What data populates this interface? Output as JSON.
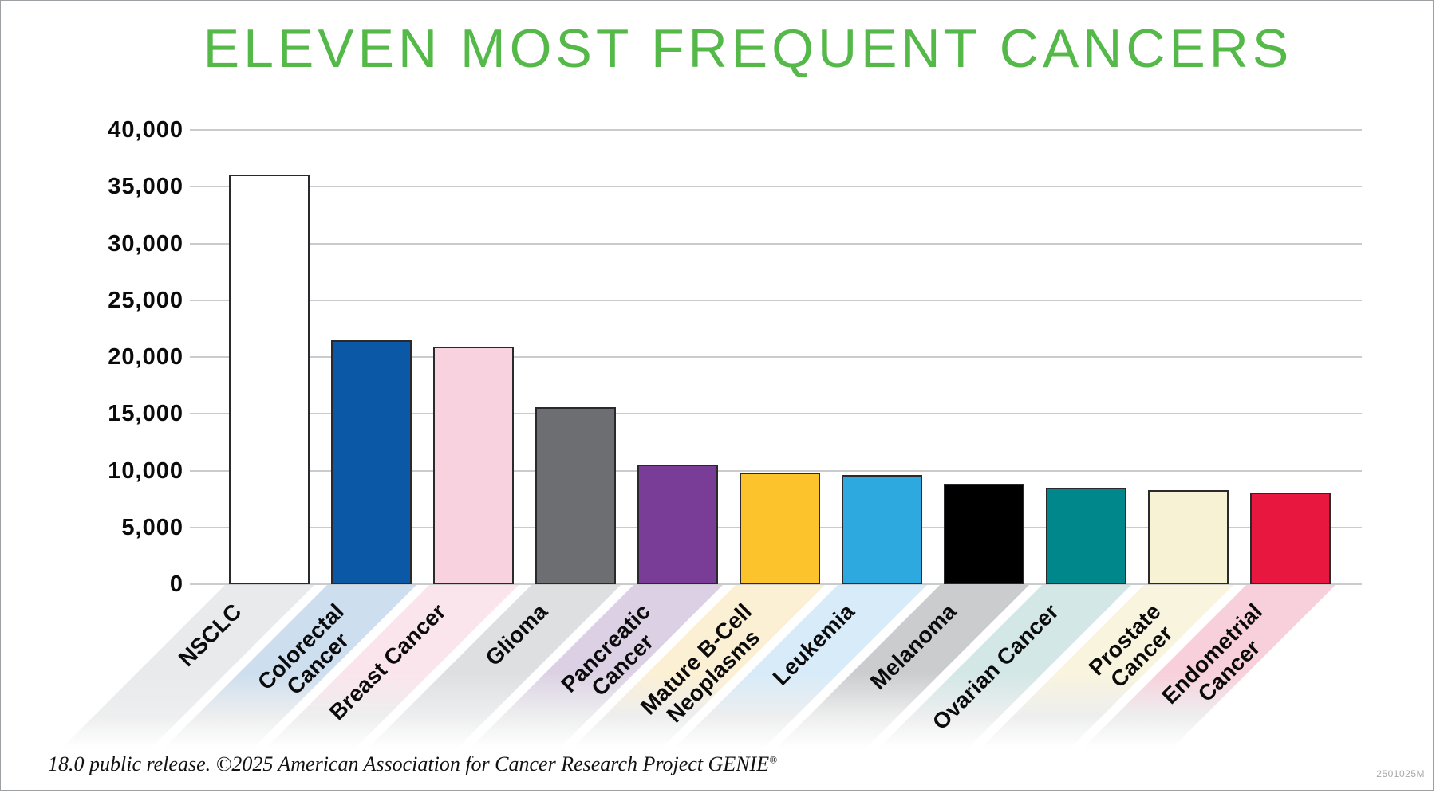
{
  "title": {
    "text": "ELEVEN MOST FREQUENT CANCERS",
    "color": "#54B948"
  },
  "footer": {
    "text": "18.0 public release. ©2025 American Association for Cancer Research Project GENIE",
    "registered_mark": "®",
    "corner_code": "2501025M"
  },
  "chart_data": {
    "type": "bar",
    "title": "ELEVEN MOST FREQUENT CANCERS",
    "xlabel": "",
    "ylabel": "",
    "ylim": [
      0,
      40000
    ],
    "ytick_step": 5000,
    "ytick_labels": [
      "0",
      "5,000",
      "10,000",
      "15,000",
      "20,000",
      "25,000",
      "30,000",
      "35,000",
      "40,000"
    ],
    "grid": true,
    "legend": false,
    "categories": [
      "NSCLC",
      "Colorectal Cancer",
      "Breast Cancer",
      "Glioma",
      "Pancreatic Cancer",
      "Mature B-Cell Neoplasms",
      "Leukemia",
      "Melanoma",
      "Ovarian Cancer",
      "Prostate Cancer",
      "Endometrial Cancer"
    ],
    "category_display": [
      "NSCLC",
      "Colorectal\nCancer",
      "Breast Cancer",
      "Glioma",
      "Pancreatic\nCancer",
      "Mature B-Cell\nNeoplasms",
      "Leukemia",
      "Melanoma",
      "Ovarian Cancer",
      "Prostate\nCancer",
      "Endometrial\nCancer"
    ],
    "values": [
      36100,
      21500,
      20900,
      15600,
      10500,
      9850,
      9650,
      8850,
      8500,
      8300,
      8100
    ],
    "bar_colors": [
      "#FFFFFF",
      "#0A58A6",
      "#F9D2E0",
      "#6D6E71",
      "#7A3D97",
      "#FDC32D",
      "#2EA9E0",
      "#000000",
      "#00878C",
      "#F7F2D3",
      "#E8173F"
    ],
    "bar_border_color": "#2A2A2E",
    "ribbon_tints": [
      "#E9EAEB",
      "#CDDEEE",
      "#FBE5ED",
      "#DEDFE0",
      "#DCD1E4",
      "#FCF0D4",
      "#D7EBF8",
      "#CBCCCD",
      "#D2E7E6",
      "#F9F4DE",
      "#F8D0DB"
    ],
    "gridline_color": "#C9CBCD",
    "axis_text_color": "#0B0B0C"
  }
}
